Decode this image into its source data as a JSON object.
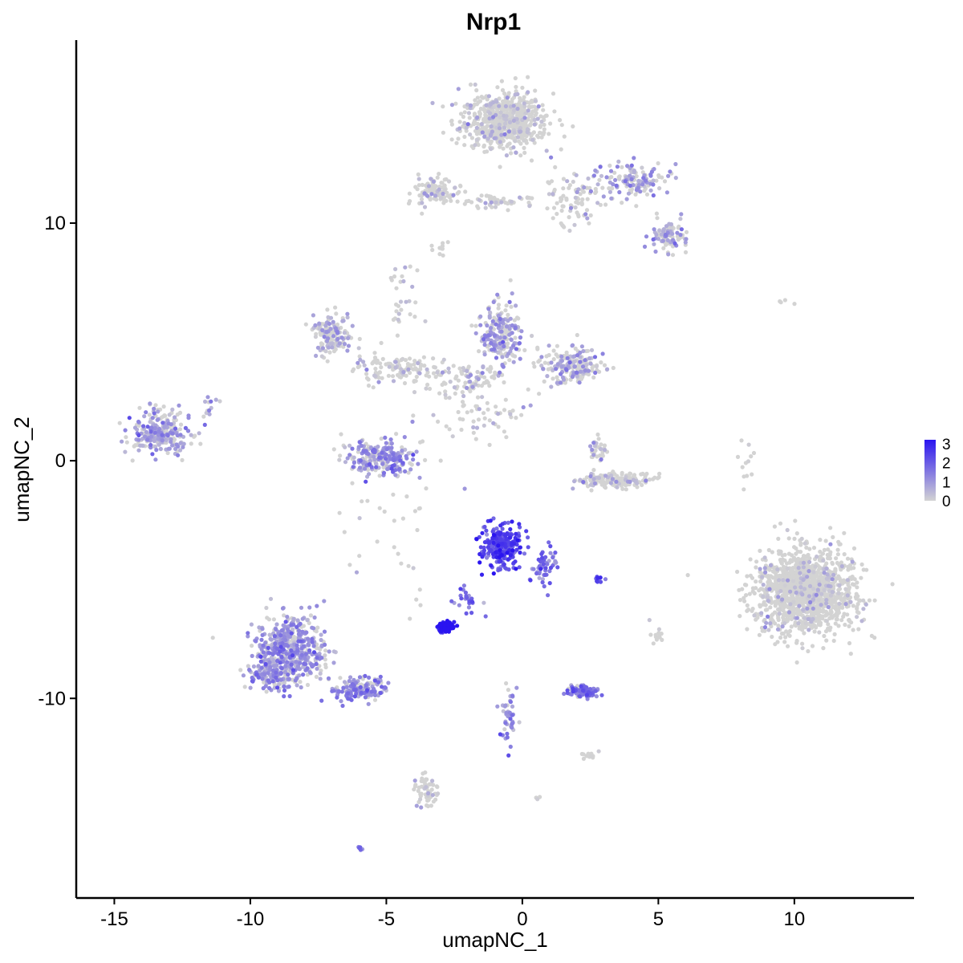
{
  "chart_data": {
    "type": "scatter",
    "title": "Nrp1",
    "xlabel": "umapNC_1",
    "ylabel": "umapNC_2",
    "xlim": [
      -16.4,
      14.4
    ],
    "ylim": [
      -18.4,
      17.7
    ],
    "xticks": [
      -15,
      -10,
      -5,
      0,
      5,
      10
    ],
    "yticks": [
      -10,
      0,
      10
    ],
    "grid": false,
    "color_scale": {
      "low": "#D3D3D3",
      "high": "#2A14F0",
      "min": 0,
      "max": 3.2
    },
    "legend": {
      "position": "right",
      "ticks": [
        3,
        2,
        1,
        0
      ]
    },
    "clusters": [
      {
        "center": [
          -0.7,
          14.3
        ],
        "spread": [
          1.3,
          1.0
        ],
        "count": 650,
        "expression": 0.1
      },
      {
        "center": [
          4.0,
          11.8
        ],
        "spread": [
          1.1,
          0.6
        ],
        "count": 140,
        "expression": 0.8
      },
      {
        "center": [
          5.4,
          9.4
        ],
        "spread": [
          0.6,
          0.5
        ],
        "count": 90,
        "expression": 0.7
      },
      {
        "center": [
          -3.2,
          11.3
        ],
        "spread": [
          0.7,
          0.5
        ],
        "count": 120,
        "expression": 0.1
      },
      {
        "center": [
          -1.0,
          10.9
        ],
        "spread": [
          1.0,
          0.25
        ],
        "count": 60,
        "expression": 0.1
      },
      {
        "center": [
          1.8,
          11.0
        ],
        "spread": [
          0.8,
          0.9
        ],
        "count": 80,
        "expression": 0.15
      },
      {
        "center": [
          -7.0,
          5.3
        ],
        "spread": [
          0.6,
          0.7
        ],
        "count": 140,
        "expression": 0.6
      },
      {
        "center": [
          -0.8,
          5.3
        ],
        "spread": [
          0.7,
          1.0
        ],
        "count": 220,
        "expression": 0.8
      },
      {
        "center": [
          1.8,
          4.0
        ],
        "spread": [
          1.0,
          0.6
        ],
        "count": 200,
        "expression": 0.6
      },
      {
        "center": [
          -4.5,
          3.8
        ],
        "spread": [
          1.4,
          0.5
        ],
        "count": 120,
        "expression": 0.2
      },
      {
        "center": [
          -2.0,
          3.5
        ],
        "spread": [
          1.0,
          0.6
        ],
        "count": 80,
        "expression": 0.3
      },
      {
        "center": [
          -13.3,
          1.2
        ],
        "spread": [
          0.9,
          0.7
        ],
        "count": 260,
        "expression": 0.8
      },
      {
        "center": [
          -5.3,
          0.1
        ],
        "spread": [
          1.1,
          0.6
        ],
        "count": 240,
        "expression": 1.0
      },
      {
        "center": [
          3.4,
          -0.8
        ],
        "spread": [
          1.1,
          0.3
        ],
        "count": 170,
        "expression": 0.15
      },
      {
        "center": [
          2.8,
          0.5
        ],
        "spread": [
          0.3,
          0.5
        ],
        "count": 30,
        "expression": 0.5
      },
      {
        "center": [
          10.4,
          -5.5
        ],
        "spread": [
          1.5,
          1.5
        ],
        "count": 1300,
        "expression": 0.02
      },
      {
        "center": [
          -0.8,
          -3.6
        ],
        "spread": [
          0.6,
          0.7
        ],
        "count": 260,
        "expression": 2.2
      },
      {
        "center": [
          0.8,
          -4.5
        ],
        "spread": [
          0.4,
          0.8
        ],
        "count": 50,
        "expression": 1.6
      },
      {
        "center": [
          -2.8,
          -7.0
        ],
        "spread": [
          0.25,
          0.15
        ],
        "count": 140,
        "expression": 3.1
      },
      {
        "center": [
          -8.5,
          -8.0
        ],
        "spread": [
          1.0,
          1.2
        ],
        "count": 540,
        "expression": 1.0
      },
      {
        "center": [
          -9.3,
          -9.0
        ],
        "spread": [
          0.7,
          0.5
        ],
        "count": 120,
        "expression": 1.0
      },
      {
        "center": [
          -6.0,
          -9.6
        ],
        "spread": [
          0.9,
          0.35
        ],
        "count": 160,
        "expression": 1.1
      },
      {
        "center": [
          -3.5,
          -13.9
        ],
        "spread": [
          0.4,
          0.7
        ],
        "count": 60,
        "expression": 0.1
      },
      {
        "center": [
          2.3,
          -9.7
        ],
        "spread": [
          0.45,
          0.2
        ],
        "count": 120,
        "expression": 1.4
      },
      {
        "center": [
          -0.5,
          -11.0
        ],
        "spread": [
          0.25,
          1.2
        ],
        "count": 45,
        "expression": 1.2
      },
      {
        "center": [
          2.4,
          -12.4
        ],
        "spread": [
          0.3,
          0.15
        ],
        "count": 15,
        "expression": 0.3
      },
      {
        "center": [
          2.8,
          -5.0
        ],
        "spread": [
          0.2,
          0.1
        ],
        "count": 10,
        "expression": 2.0
      },
      {
        "center": [
          -2.0,
          -5.8
        ],
        "spread": [
          0.4,
          0.6
        ],
        "count": 25,
        "expression": 1.8
      },
      {
        "center": [
          -4.8,
          -2.2
        ],
        "spread": [
          1.5,
          2.8
        ],
        "count": 40,
        "expression": 0.1
      },
      {
        "center": [
          -1.5,
          2.0
        ],
        "spread": [
          1.5,
          1.0
        ],
        "count": 60,
        "expression": 0.1
      },
      {
        "center": [
          -4.5,
          7.0
        ],
        "spread": [
          0.6,
          1.2
        ],
        "count": 30,
        "expression": 0.5
      },
      {
        "center": [
          -11.5,
          2.2
        ],
        "spread": [
          0.3,
          0.6
        ],
        "count": 12,
        "expression": 0.6
      },
      {
        "center": [
          8.2,
          0.0
        ],
        "spread": [
          0.3,
          1.0
        ],
        "count": 12,
        "expression": 0.1
      },
      {
        "center": [
          9.6,
          6.7
        ],
        "spread": [
          0.3,
          0.1
        ],
        "count": 4,
        "expression": 0.0
      },
      {
        "center": [
          -3.0,
          8.9
        ],
        "spread": [
          0.3,
          0.2
        ],
        "count": 10,
        "expression": 0.1
      },
      {
        "center": [
          5.0,
          -7.3
        ],
        "spread": [
          0.2,
          0.4
        ],
        "count": 12,
        "expression": 0.0
      },
      {
        "center": [
          -6.0,
          -16.3
        ],
        "spread": [
          0.15,
          0.1
        ],
        "count": 5,
        "expression": 1.2
      },
      {
        "center": [
          0.6,
          -14.2
        ],
        "spread": [
          0.1,
          0.1
        ],
        "count": 3,
        "expression": 0.0
      }
    ]
  }
}
